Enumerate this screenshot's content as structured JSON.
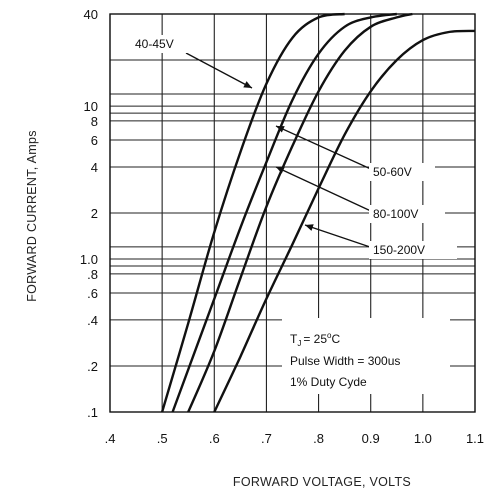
{
  "chart_data": {
    "type": "line",
    "title": "",
    "xlabel": "FORWARD VOLTAGE, VOLTS",
    "ylabel": "FORWARD CURRENT, Amps",
    "xlim": [
      0.4,
      1.1
    ],
    "ylim": [
      0.1,
      40
    ],
    "yscale": "log",
    "grid": true,
    "x_ticks": [
      ".4",
      ".5",
      ".6",
      ".7",
      ".8",
      "0.9",
      "1.0",
      "1.1"
    ],
    "y_ticks": [
      {
        "value": 40,
        "label": "40"
      },
      {
        "value": 10,
        "label": "10"
      },
      {
        "value": 8,
        "label": "8"
      },
      {
        "value": 6,
        "label": "6"
      },
      {
        "value": 4,
        "label": "4"
      },
      {
        "value": 2,
        "label": "2"
      },
      {
        "value": 1.0,
        "label": "1.0"
      },
      {
        "value": 0.8,
        "label": ".8"
      },
      {
        "value": 0.6,
        "label": ".6"
      },
      {
        "value": 0.4,
        "label": ".4"
      },
      {
        "value": 0.2,
        "label": ".2"
      },
      {
        "value": 0.1,
        "label": ".1"
      }
    ],
    "y_gridlines": [
      0.1,
      0.2,
      0.4,
      0.6,
      0.8,
      0.9,
      1.0,
      1.2,
      2,
      4,
      6,
      8,
      9,
      10,
      12,
      20,
      40
    ],
    "series": [
      {
        "name": "40-45V",
        "x": [
          0.5,
          0.55,
          0.6,
          0.65,
          0.7,
          0.75,
          0.8,
          0.85
        ],
        "y": [
          0.1,
          0.38,
          1.5,
          5.0,
          14,
          28,
          38,
          40
        ]
      },
      {
        "name": "50-60V",
        "x": [
          0.52,
          0.6,
          0.65,
          0.7,
          0.75,
          0.8,
          0.85,
          0.9,
          0.95
        ],
        "y": [
          0.1,
          0.55,
          1.6,
          4.3,
          11,
          22,
          33,
          38,
          40
        ]
      },
      {
        "name": "80-100V",
        "x": [
          0.55,
          0.6,
          0.65,
          0.7,
          0.75,
          0.8,
          0.85,
          0.9,
          0.95,
          0.98
        ],
        "y": [
          0.1,
          0.25,
          0.75,
          2.2,
          5.5,
          12.5,
          23,
          33,
          38,
          40
        ]
      },
      {
        "name": "150-200V",
        "x": [
          0.6,
          0.65,
          0.7,
          0.75,
          0.8,
          0.85,
          0.9,
          0.95,
          1.0,
          1.05,
          1.1
        ],
        "y": [
          0.1,
          0.23,
          0.55,
          1.25,
          2.9,
          6.5,
          12.5,
          20,
          27,
          30.5,
          31
        ]
      }
    ],
    "annotations": [
      {
        "text": "40-45V",
        "x_data": 0.69,
        "y_data": 22
      },
      {
        "text": "50-60V",
        "x_data": 0.92,
        "y_data": 4.6
      },
      {
        "text": "80-100V",
        "x_data": 0.92,
        "y_data": 2.4
      },
      {
        "text": "150-200V",
        "x_data": 0.92,
        "y_data": 1.3
      }
    ],
    "legend_box": {
      "placement": "bottom-right",
      "line1_prefix": "T",
      "line1_sub": "J",
      "line1_suffix": "= 25",
      "line1_sup": "o",
      "line1_end": "C",
      "line2": "Pulse Width = 300us",
      "line3": "1% Duty Cyde"
    }
  }
}
